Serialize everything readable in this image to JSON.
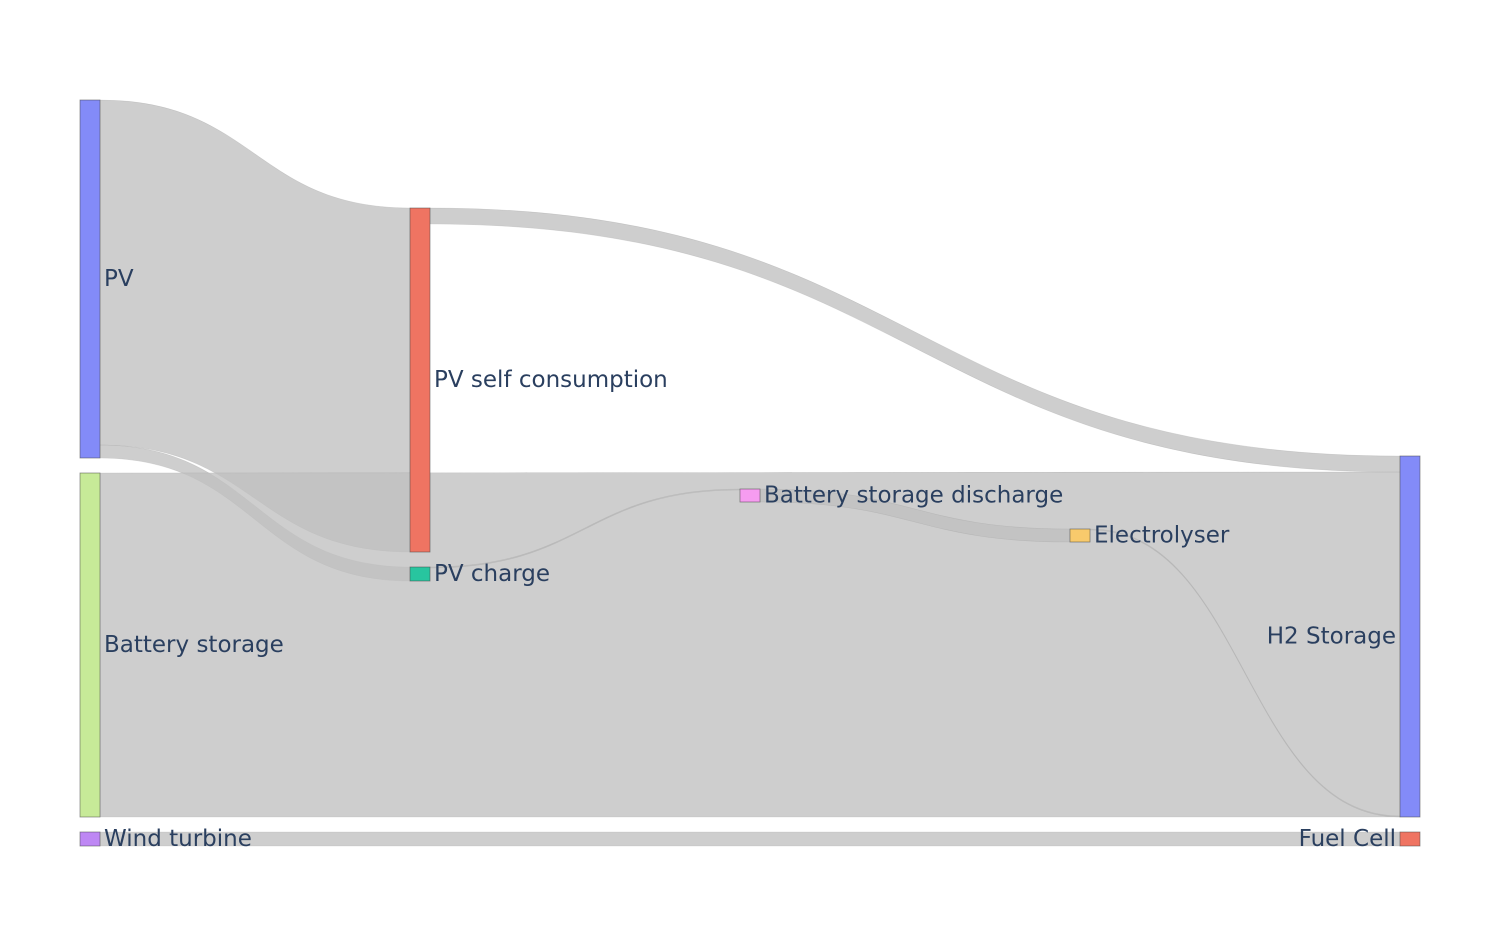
{
  "chart_data": {
    "type": "sankey",
    "title": "",
    "nodes": [
      {
        "id": "pv",
        "label": "PV",
        "color": "#838bf8"
      },
      {
        "id": "battery_storage",
        "label": "Battery storage",
        "color": "#c7ea98"
      },
      {
        "id": "wind_turbine",
        "label": "Wind turbine",
        "color": "#be87f4"
      },
      {
        "id": "pv_self_consumption",
        "label": "PV self consumption",
        "color": "#ef7462"
      },
      {
        "id": "pv_charge",
        "label": "PV charge",
        "color": "#28c59f"
      },
      {
        "id": "battery_storage_discharge",
        "label": "Battery storage discharge",
        "color": "#f69cf0"
      },
      {
        "id": "electrolyser",
        "label": "Electrolyser",
        "color": "#f8ca6c"
      },
      {
        "id": "h2_storage",
        "label": "H2 Storage",
        "color": "#838bf8"
      },
      {
        "id": "fuel_cell",
        "label": "Fuel Cell",
        "color": "#ef7462"
      }
    ],
    "links": [
      {
        "source": "pv",
        "target": "pv_self_consumption",
        "value": 345
      },
      {
        "source": "pv",
        "target": "pv_charge",
        "value": 13
      },
      {
        "source": "battery_storage",
        "target": "h2_storage",
        "value": 345
      },
      {
        "source": "pv_self_consumption",
        "target": "h2_storage",
        "value": 16
      },
      {
        "source": "pv_charge",
        "target": "battery_storage_discharge",
        "value": 1
      },
      {
        "source": "battery_storage_discharge",
        "target": "electrolyser",
        "value": 13
      },
      {
        "source": "electrolyser",
        "target": "h2_storage",
        "value": 1
      },
      {
        "source": "wind_turbine",
        "target": "fuel_cell",
        "value": 14
      }
    ],
    "link_color": "#c0c0c0"
  }
}
